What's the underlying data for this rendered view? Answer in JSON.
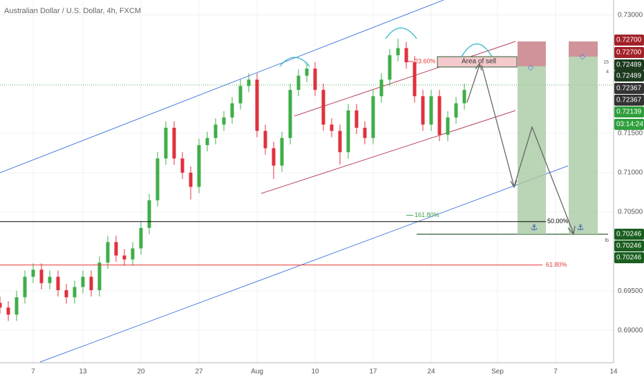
{
  "chart_data": {
    "type": "candlestick",
    "title": "Australian Dollar / U.S. Dollar, 4h, FXCM",
    "x": [
      3,
      4,
      5,
      6,
      7,
      8,
      9,
      10,
      11,
      12,
      13,
      14,
      15,
      16,
      17,
      18,
      19,
      20,
      21,
      22,
      23,
      24,
      25,
      26,
      27,
      28,
      29,
      30,
      31,
      32,
      33,
      34,
      35,
      36,
      37,
      38,
      39,
      40,
      41,
      42,
      43,
      44,
      45,
      46,
      47,
      48,
      49,
      50,
      51,
      52,
      53,
      54,
      55,
      56,
      57,
      58,
      59
    ],
    "open": [
      0.6935,
      0.6929,
      0.692,
      0.6942,
      0.6968,
      0.6977,
      0.696,
      0.6968,
      0.6951,
      0.6942,
      0.6955,
      0.6968,
      0.6951,
      0.6986,
      0.7012,
      0.6995,
      0.699,
      0.7004,
      0.703,
      0.7065,
      0.7118,
      0.7157,
      0.7118,
      0.71,
      0.7082,
      0.7135,
      0.7144,
      0.7161,
      0.717,
      0.7188,
      0.721,
      0.7218,
      0.7153,
      0.7131,
      0.7109,
      0.7144,
      0.7205,
      0.7223,
      0.7232,
      0.7205,
      0.7161,
      0.7153,
      0.7126,
      0.7179,
      0.7157,
      0.7144,
      0.7197,
      0.7218,
      0.7249,
      0.7258,
      0.724,
      0.7197,
      0.7161,
      0.7197,
      0.7148,
      0.717,
      0.7188
    ],
    "high": [
      0.6943,
      0.6937,
      0.695,
      0.6976,
      0.6985,
      0.6985,
      0.6976,
      0.6976,
      0.6959,
      0.6963,
      0.6976,
      0.6976,
      0.6994,
      0.702,
      0.702,
      0.7003,
      0.7012,
      0.7038,
      0.7073,
      0.7126,
      0.7165,
      0.7165,
      0.7126,
      0.7108,
      0.7143,
      0.7152,
      0.7169,
      0.7178,
      0.7196,
      0.7218,
      0.7226,
      0.7226,
      0.7161,
      0.7139,
      0.7152,
      0.7213,
      0.7231,
      0.724,
      0.724,
      0.7213,
      0.7169,
      0.7161,
      0.7187,
      0.7187,
      0.7165,
      0.7205,
      0.7226,
      0.7257,
      0.727,
      0.7266,
      0.7248,
      0.7205,
      0.7205,
      0.7205,
      0.7178,
      0.7196,
      0.7213
    ],
    "low": [
      0.6921,
      0.6912,
      0.6912,
      0.6934,
      0.696,
      0.6952,
      0.6952,
      0.6943,
      0.6934,
      0.6934,
      0.6947,
      0.6943,
      0.6943,
      0.6978,
      0.6987,
      0.6982,
      0.6982,
      0.6996,
      0.7022,
      0.7057,
      0.711,
      0.711,
      0.7092,
      0.7066,
      0.7074,
      0.7127,
      0.7136,
      0.7153,
      0.7162,
      0.718,
      0.7202,
      0.7145,
      0.7123,
      0.7092,
      0.7101,
      0.7136,
      0.7197,
      0.7215,
      0.7197,
      0.7153,
      0.7145,
      0.711,
      0.7118,
      0.7149,
      0.7136,
      0.7136,
      0.7189,
      0.721,
      0.7241,
      0.7232,
      0.7189,
      0.7153,
      0.7153,
      0.714,
      0.714,
      0.7162,
      0.718
    ],
    "close": [
      0.6929,
      0.692,
      0.6942,
      0.6968,
      0.6977,
      0.696,
      0.6968,
      0.6951,
      0.6942,
      0.6955,
      0.6968,
      0.6951,
      0.6986,
      0.7012,
      0.6995,
      0.699,
      0.7004,
      0.703,
      0.7065,
      0.7118,
      0.7157,
      0.7118,
      0.71,
      0.7082,
      0.7135,
      0.7144,
      0.7161,
      0.717,
      0.7188,
      0.721,
      0.7218,
      0.7153,
      0.7131,
      0.7109,
      0.7144,
      0.7205,
      0.7223,
      0.7232,
      0.7205,
      0.7161,
      0.7153,
      0.7126,
      0.7179,
      0.7157,
      0.7144,
      0.7197,
      0.7218,
      0.7249,
      0.7258,
      0.724,
      0.7197,
      0.7161,
      0.7197,
      0.7148,
      0.717,
      0.7188,
      0.7205
    ],
    "up_color": "#3fae49",
    "down_color": "#e0313e",
    "xlim": [
      3,
      77
    ],
    "xticks": [
      7,
      13,
      20,
      27,
      {
        "value": 34,
        "label": "Aug"
      },
      {
        "value": 41,
        "label": "10"
      },
      {
        "value": 48,
        "label": "17"
      },
      {
        "value": 55,
        "label": "24"
      },
      {
        "value": 63,
        "label": "Sep"
      },
      {
        "value": 70,
        "label": "7"
      },
      {
        "value": 77,
        "label": "14"
      }
    ],
    "ylim": [
      0.6859,
      0.7319
    ],
    "yticks": [
      {
        "value": 0.73,
        "label": "0.73000"
      },
      {
        "value": 0.715,
        "label": "0.71500"
      },
      {
        "value": 0.71,
        "label": "0.71000"
      },
      {
        "value": 0.705,
        "label": "0.70500"
      },
      {
        "value": 0.695,
        "label": "0.69500"
      },
      {
        "value": 0.69,
        "label": "0.69000"
      }
    ],
    "grid": true,
    "levels": [
      {
        "label": "23.60%",
        "value": 0.7241,
        "color": "#e53935"
      },
      {
        "label": "161.80%",
        "value": 0.7046,
        "color": "#43a047"
      },
      {
        "label": "50.00%",
        "value": 0.7038,
        "color": "#000000"
      },
      {
        "label": "61.80%",
        "value": 0.6983,
        "color": "#e53935"
      }
    ],
    "area_label": "Area of sell",
    "price_labels": [
      {
        "value": 0.727,
        "label": "0.72700",
        "color": "#a3222a"
      },
      {
        "value": 0.727,
        "label": "0.72700",
        "color": "#a3222a"
      },
      {
        "value": 0.72489,
        "label": "0.72489",
        "color": "#1e3a1e"
      },
      {
        "value": 0.72489,
        "label": "0.72489",
        "color": "#1e3a1e"
      },
      {
        "value": 0.72367,
        "label": "0.72367",
        "color": "#333333"
      },
      {
        "value": 0.72367,
        "label": "0.72367",
        "color": "#333333"
      },
      {
        "value": 0.72139,
        "label": "0.72139",
        "color": "#2e9e3c"
      },
      {
        "value": 0.70246,
        "label": "0.70246",
        "color": "#1b5e20"
      },
      {
        "value": 0.70246,
        "label": "0.70246",
        "color": "#1b5e20"
      },
      {
        "value": 0.70246,
        "label": "0.70246",
        "color": "#1b5e20"
      }
    ],
    "countdown": "03:14:24",
    "side_labels": [
      "15",
      "4",
      "lb"
    ]
  }
}
